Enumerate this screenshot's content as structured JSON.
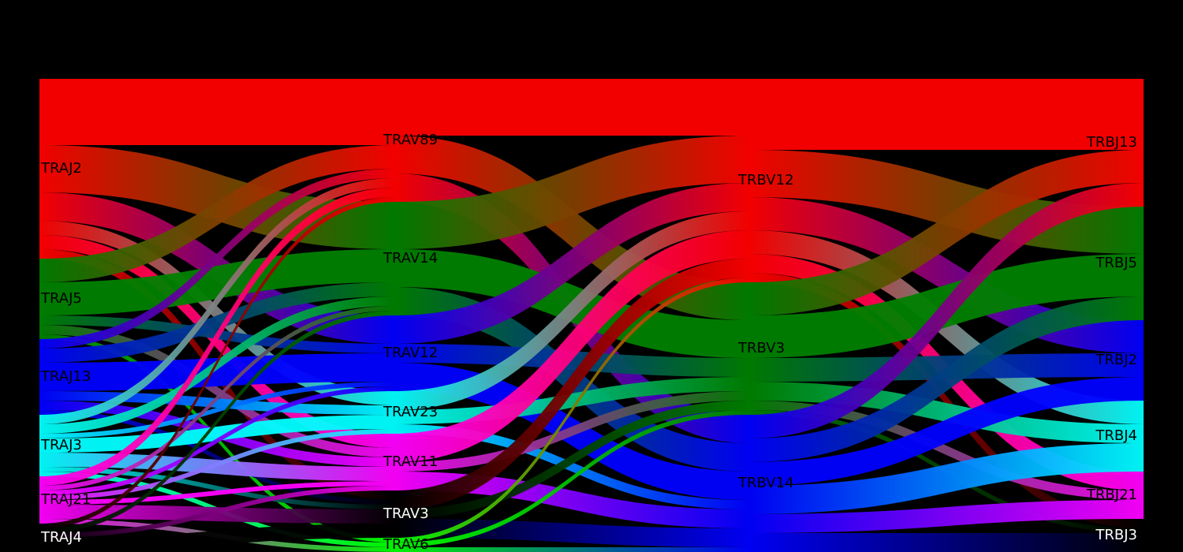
{
  "chart_data": {
    "type": "sankey",
    "columns": [
      [
        {
          "name": "TRAJ2",
          "color": "#ff0000"
        },
        {
          "name": "TRAJ5",
          "color": "#008000"
        },
        {
          "name": "TRAJ13",
          "color": "#0000ff"
        },
        {
          "name": "TRAJ3",
          "color": "#00ffff"
        },
        {
          "name": "TRAJ21",
          "color": "#ff00ff"
        },
        {
          "name": "TRAJ4",
          "color": "#000000"
        }
      ],
      [
        {
          "name": "TRAV89",
          "color": "#ff0000"
        },
        {
          "name": "TRAV14",
          "color": "#008000"
        },
        {
          "name": "TRAV12",
          "color": "#0000ff"
        },
        {
          "name": "TRAV23",
          "color": "#00ffff"
        },
        {
          "name": "TRAV11",
          "color": "#ff00ff"
        },
        {
          "name": "TRAV3",
          "color": "#000000"
        },
        {
          "name": "TRAV6",
          "color": "#00ff00"
        }
      ],
      [
        {
          "name": "TRBV12",
          "color": "#ff0000"
        },
        {
          "name": "TRBV3",
          "color": "#008000"
        },
        {
          "name": "TRBV14",
          "color": "#0000ff"
        }
      ],
      [
        {
          "name": "TRBJ13",
          "color": "#ff0000"
        },
        {
          "name": "TRBJ5",
          "color": "#008000"
        },
        {
          "name": "TRBJ2",
          "color": "#0000ff"
        },
        {
          "name": "TRBJ4",
          "color": "#00ffff"
        },
        {
          "name": "TRBJ21",
          "color": "#ff00ff"
        },
        {
          "name": "TRBJ3",
          "color": "#000000"
        }
      ]
    ],
    "links": [
      {
        "source": "TRAJ2",
        "target": "TRAV89",
        "value": 14
      },
      {
        "source": "TRAJ2",
        "target": "TRAV14",
        "value": 10
      },
      {
        "source": "TRAJ2",
        "target": "TRAV12",
        "value": 6
      },
      {
        "source": "TRAJ2",
        "target": "TRAV23",
        "value": 3
      },
      {
        "source": "TRAJ2",
        "target": "TRAV11",
        "value": 3
      },
      {
        "source": "TRAJ2",
        "target": "TRAV3",
        "value": 2
      },
      {
        "source": "TRAJ5",
        "target": "TRAV89",
        "value": 5
      },
      {
        "source": "TRAJ5",
        "target": "TRAV14",
        "value": 7
      },
      {
        "source": "TRAJ5",
        "target": "TRAV12",
        "value": 2
      },
      {
        "source": "TRAJ5",
        "target": "TRAV11",
        "value": 2
      },
      {
        "source": "TRAJ5",
        "target": "TRAV6",
        "value": 1
      },
      {
        "source": "TRAJ13",
        "target": "TRAV89",
        "value": 2
      },
      {
        "source": "TRAJ13",
        "target": "TRAV14",
        "value": 3
      },
      {
        "source": "TRAJ13",
        "target": "TRAV12",
        "value": 6
      },
      {
        "source": "TRAJ13",
        "target": "TRAV23",
        "value": 2
      },
      {
        "source": "TRAJ13",
        "target": "TRAV11",
        "value": 2
      },
      {
        "source": "TRAJ13",
        "target": "TRAV3",
        "value": 1
      },
      {
        "source": "TRAJ3",
        "target": "TRAV89",
        "value": 2
      },
      {
        "source": "TRAJ3",
        "target": "TRAV14",
        "value": 2
      },
      {
        "source": "TRAJ3",
        "target": "TRAV12",
        "value": 1
      },
      {
        "source": "TRAJ3",
        "target": "TRAV23",
        "value": 3
      },
      {
        "source": "TRAJ3",
        "target": "TRAV11",
        "value": 3
      },
      {
        "source": "TRAJ3",
        "target": "TRAV3",
        "value": 1
      },
      {
        "source": "TRAJ3",
        "target": "TRAV6",
        "value": 1
      },
      {
        "source": "TRAJ21",
        "target": "TRAV89",
        "value": 2
      },
      {
        "source": "TRAJ21",
        "target": "TRAV14",
        "value": 1
      },
      {
        "source": "TRAJ21",
        "target": "TRAV12",
        "value": 1
      },
      {
        "source": "TRAJ21",
        "target": "TRAV23",
        "value": 1
      },
      {
        "source": "TRAJ21",
        "target": "TRAV11",
        "value": 1
      },
      {
        "source": "TRAJ21",
        "target": "TRAV3",
        "value": 3
      },
      {
        "source": "TRAJ21",
        "target": "TRAV6",
        "value": 1
      },
      {
        "source": "TRAJ4",
        "target": "TRAV89",
        "value": 1
      },
      {
        "source": "TRAJ4",
        "target": "TRAV14",
        "value": 1
      },
      {
        "source": "TRAJ4",
        "target": "TRAV11",
        "value": 1
      },
      {
        "source": "TRAJ4",
        "target": "TRAV3",
        "value": 3
      },
      {
        "source": "TRAV89",
        "target": "TRBV12",
        "value": 12
      },
      {
        "source": "TRAV89",
        "target": "TRBV3",
        "value": 8
      },
      {
        "source": "TRAV89",
        "target": "TRBV14",
        "value": 6
      },
      {
        "source": "TRAV14",
        "target": "TRBV12",
        "value": 10
      },
      {
        "source": "TRAV14",
        "target": "TRBV3",
        "value": 8
      },
      {
        "source": "TRAV14",
        "target": "TRBV14",
        "value": 6
      },
      {
        "source": "TRAV12",
        "target": "TRBV12",
        "value": 6
      },
      {
        "source": "TRAV12",
        "target": "TRBV3",
        "value": 4
      },
      {
        "source": "TRAV12",
        "target": "TRBV14",
        "value": 6
      },
      {
        "source": "TRAV23",
        "target": "TRBV12",
        "value": 4
      },
      {
        "source": "TRAV23",
        "target": "TRBV3",
        "value": 3
      },
      {
        "source": "TRAV23",
        "target": "TRBV14",
        "value": 2
      },
      {
        "source": "TRAV11",
        "target": "TRBV12",
        "value": 6
      },
      {
        "source": "TRAV11",
        "target": "TRBV3",
        "value": 2
      },
      {
        "source": "TRAV11",
        "target": "TRBV14",
        "value": 4
      },
      {
        "source": "TRAV3",
        "target": "TRBV12",
        "value": 4
      },
      {
        "source": "TRAV3",
        "target": "TRBV3",
        "value": 2
      },
      {
        "source": "TRAV3",
        "target": "TRBV14",
        "value": 4
      },
      {
        "source": "TRAV6",
        "target": "TRBV12",
        "value": 1
      },
      {
        "source": "TRAV6",
        "target": "TRBV3",
        "value": 1
      },
      {
        "source": "TRAV6",
        "target": "TRBV14",
        "value": 1
      },
      {
        "source": "TRBV12",
        "target": "TRBJ13",
        "value": 15
      },
      {
        "source": "TRBV12",
        "target": "TRBJ5",
        "value": 10
      },
      {
        "source": "TRBV12",
        "target": "TRBJ2",
        "value": 7
      },
      {
        "source": "TRBV12",
        "target": "TRBJ4",
        "value": 5
      },
      {
        "source": "TRBV12",
        "target": "TRBJ21",
        "value": 4
      },
      {
        "source": "TRBV12",
        "target": "TRBJ3",
        "value": 2
      },
      {
        "source": "TRBV3",
        "target": "TRBJ13",
        "value": 7
      },
      {
        "source": "TRBV3",
        "target": "TRBJ5",
        "value": 9
      },
      {
        "source": "TRBV3",
        "target": "TRBJ2",
        "value": 5
      },
      {
        "source": "TRBV3",
        "target": "TRBJ4",
        "value": 4
      },
      {
        "source": "TRBV3",
        "target": "TRBJ21",
        "value": 2
      },
      {
        "source": "TRBV3",
        "target": "TRBJ3",
        "value": 1
      },
      {
        "source": "TRBV14",
        "target": "TRBJ13",
        "value": 5
      },
      {
        "source": "TRBV14",
        "target": "TRBJ5",
        "value": 5
      },
      {
        "source": "TRBV14",
        "target": "TRBJ2",
        "value": 5
      },
      {
        "source": "TRBV14",
        "target": "TRBJ4",
        "value": 6
      },
      {
        "source": "TRBV14",
        "target": "TRBJ21",
        "value": 4
      },
      {
        "source": "TRBV14",
        "target": "TRBJ3",
        "value": 4
      }
    ]
  }
}
